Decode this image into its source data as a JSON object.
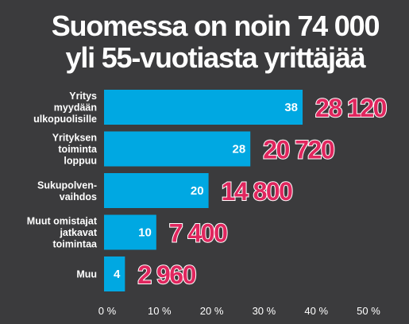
{
  "chart_data": {
    "type": "bar",
    "orientation": "horizontal",
    "title_lines": [
      "Suomessa on noin 74 000",
      "yli 55-vuotiasta yrittäjää"
    ],
    "categories": [
      [
        "Yritys",
        "myydään",
        "ulkopuolisille"
      ],
      [
        "Yrityksen",
        "toiminta",
        "loppuu"
      ],
      [
        "Sukupolven-",
        "vaihdos"
      ],
      [
        "Muut omistajat",
        "jatkavat",
        "toimintaa"
      ],
      [
        "Muu"
      ]
    ],
    "values": [
      38,
      28,
      20,
      10,
      4
    ],
    "value_labels": [
      "38",
      "28",
      "20",
      "10",
      "4"
    ],
    "counts": [
      "28 120",
      "20 720",
      "14 800",
      "7 400",
      "2 960"
    ],
    "xlim": [
      0,
      50
    ],
    "xticks": [
      "0 %",
      "10 %",
      "20 %",
      "30 %",
      "40 %",
      "50 %"
    ],
    "colors": {
      "bar": "#00a8e2",
      "count": "#e0265e",
      "background": "#3b3b3d",
      "text": "#ffffff"
    }
  }
}
